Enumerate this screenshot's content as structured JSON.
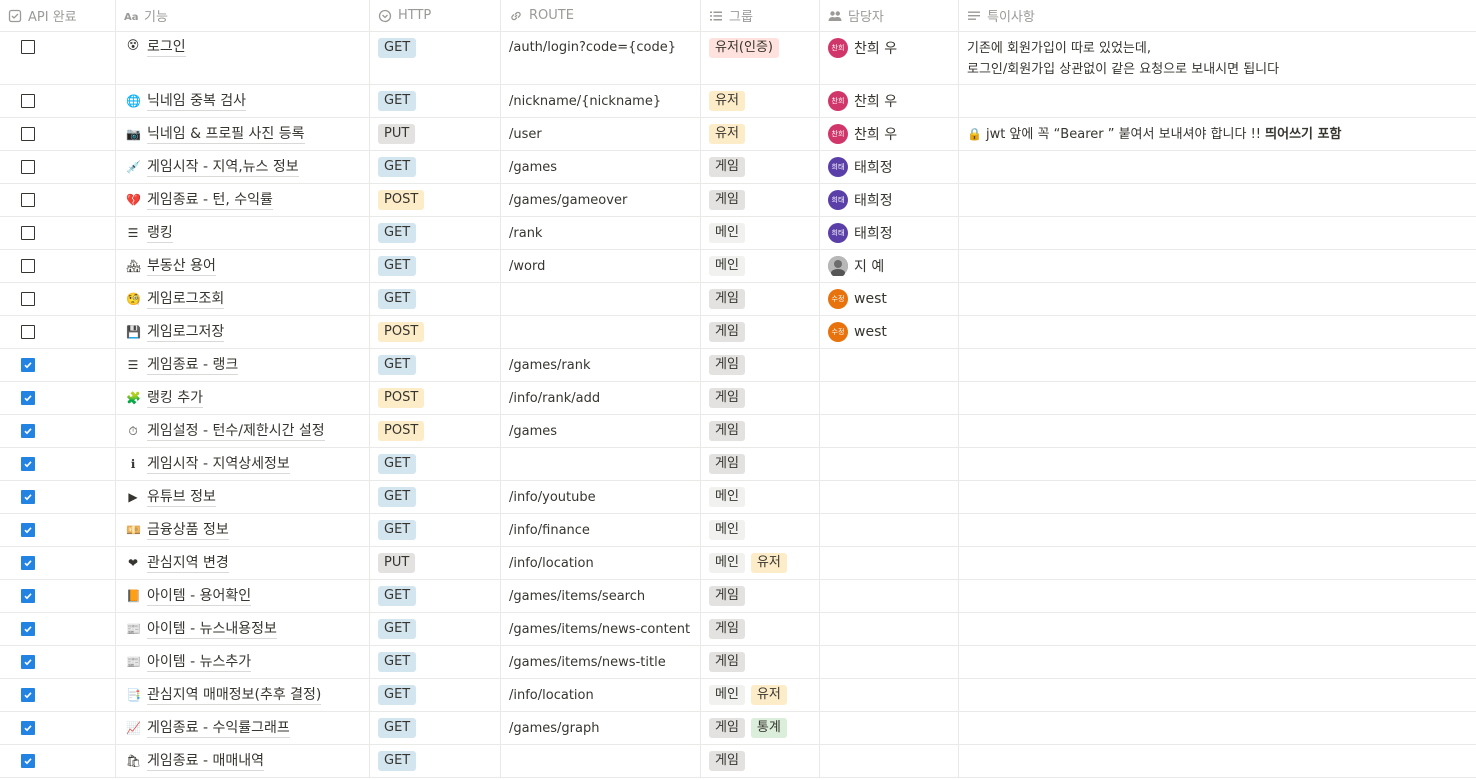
{
  "headers": [
    {
      "label": "API 완료",
      "icon": "checkbox-icon"
    },
    {
      "label": "기능",
      "icon": "text-aa-icon"
    },
    {
      "label": "HTTP",
      "icon": "select-circle-icon"
    },
    {
      "label": "ROUTE",
      "icon": "link-icon"
    },
    {
      "label": "그룹",
      "icon": "list-icon"
    },
    {
      "label": "담당자",
      "icon": "people-icon"
    },
    {
      "label": "특이사항",
      "icon": "text-lines-icon"
    }
  ],
  "colors": {
    "GET": "#d3e5ef",
    "POST": "#fdecc8",
    "PUT": "#e3e2e0",
    "유저(인증)": "#ffe2dd",
    "유저": "#fdecc8",
    "게임": "#e3e2e0",
    "메인": "#f1f1ef",
    "통계": "#dbeddb",
    "check": "#2383e2"
  },
  "avatars": {
    "찬희 우": {
      "label": "찬희",
      "color": "#d1366b"
    },
    "태희정": {
      "label": "희태",
      "color": "#5b3fa8"
    },
    "지 예": {
      "label": "",
      "color": "#8a8a8a"
    },
    "west": {
      "label": "수정",
      "color": "#e8730c"
    }
  },
  "rows": [
    {
      "done": false,
      "emoji": "😵",
      "name": "로그인",
      "http": "GET",
      "route": "/auth/login?code={code}",
      "groups": [
        "유저(인증)"
      ],
      "person": "찬희 우",
      "note_lines": [
        "기존에 회원가입이 따로 있었는데,",
        "로그인/회원가입 상관없이 같은 요청으로 보내시면 됩니다"
      ],
      "tall": true
    },
    {
      "done": false,
      "emoji": "🌐",
      "name": "닉네임 중복 검사",
      "http": "GET",
      "route": "/nickname/{nickname}",
      "groups": [
        "유저"
      ],
      "person": "찬희 우"
    },
    {
      "done": false,
      "emoji": "📷",
      "name": "닉네임 & 프로필 사진 등록",
      "http": "PUT",
      "route": "/user",
      "groups": [
        "유저"
      ],
      "person": "찬희 우",
      "note_lock": "🔒",
      "note_text": "jwt 앞에 꼭 “Bearer ” 붙여서 보내셔야 합니다 !! ",
      "note_bold": "띄어쓰기 포함"
    },
    {
      "done": false,
      "emoji": "💉",
      "name": "게임시작 - 지역,뉴스 정보",
      "http": "GET",
      "route": "/games",
      "groups": [
        "게임"
      ],
      "person": "태희정"
    },
    {
      "done": false,
      "emoji": "💔",
      "name": "게임종료 - 턴, 수익률",
      "http": "POST",
      "route": "/games/gameover",
      "groups": [
        "게임"
      ],
      "person": "태희정"
    },
    {
      "done": false,
      "emoji": "☰",
      "name": "랭킹",
      "http": "GET",
      "route": "/rank",
      "groups": [
        "메인"
      ],
      "person": "태희정"
    },
    {
      "done": false,
      "emoji": "🏘",
      "name": "부동산 용어",
      "http": "GET",
      "route": "/word",
      "groups": [
        "메인"
      ],
      "person": "지 예"
    },
    {
      "done": false,
      "emoji": "🧐",
      "name": "게임로그조회",
      "http": "GET",
      "route": "",
      "groups": [
        "게임"
      ],
      "person": "west"
    },
    {
      "done": false,
      "emoji": "💾",
      "name": "게임로그저장",
      "http": "POST",
      "route": "",
      "groups": [
        "게임"
      ],
      "person": "west"
    },
    {
      "done": true,
      "emoji": "☰",
      "name": "게임종료 - 랭크",
      "http": "GET",
      "route": "/games/rank",
      "groups": [
        "게임"
      ],
      "person": ""
    },
    {
      "done": true,
      "emoji": "🧩",
      "name": "랭킹 추가",
      "http": "POST",
      "route": "/info/rank/add",
      "groups": [
        "게임"
      ],
      "person": ""
    },
    {
      "done": true,
      "emoji": "⏱",
      "name": "게임설정 - 턴수/제한시간 설정",
      "http": "POST",
      "route": "/games",
      "groups": [
        "게임"
      ],
      "person": ""
    },
    {
      "done": true,
      "emoji": "ℹ",
      "name": "게임시작 - 지역상세정보",
      "http": "GET",
      "route": "",
      "groups": [
        "게임"
      ],
      "person": ""
    },
    {
      "done": true,
      "emoji": "▶",
      "name": "유튜브 정보",
      "http": "GET",
      "route": "/info/youtube",
      "groups": [
        "메인"
      ],
      "person": ""
    },
    {
      "done": true,
      "emoji": "💴",
      "name": "금융상품 정보",
      "http": "GET",
      "route": "/info/finance",
      "groups": [
        "메인"
      ],
      "person": ""
    },
    {
      "done": true,
      "emoji": "❤",
      "name": "관심지역 변경",
      "http": "PUT",
      "route": "/info/location",
      "groups": [
        "메인",
        "유저"
      ],
      "person": ""
    },
    {
      "done": true,
      "emoji": "📙",
      "name": "아이템 - 용어확인",
      "http": "GET",
      "route": "/games/items/search",
      "groups": [
        "게임"
      ],
      "person": ""
    },
    {
      "done": true,
      "emoji": "📰",
      "name": "아이템 - 뉴스내용정보",
      "http": "GET",
      "route": "/games/items/news-content",
      "groups": [
        "게임"
      ],
      "person": ""
    },
    {
      "done": true,
      "emoji": "📰",
      "name": "아이템 - 뉴스추가",
      "http": "GET",
      "route": "/games/items/news-title",
      "groups": [
        "게임"
      ],
      "person": ""
    },
    {
      "done": true,
      "emoji": "📑",
      "name": "관심지역 매매정보(추후 결정)",
      "http": "GET",
      "route": "/info/location",
      "groups": [
        "메인",
        "유저"
      ],
      "person": ""
    },
    {
      "done": true,
      "emoji": "📈",
      "name": "게임종료 - 수익률그래프",
      "http": "GET",
      "route": "/games/graph",
      "groups": [
        "게임",
        "통계"
      ],
      "person": ""
    },
    {
      "done": true,
      "emoji": "🛍",
      "name": "게임종료 - 매매내역",
      "http": "GET",
      "route": "",
      "groups": [
        "게임"
      ],
      "person": ""
    }
  ]
}
